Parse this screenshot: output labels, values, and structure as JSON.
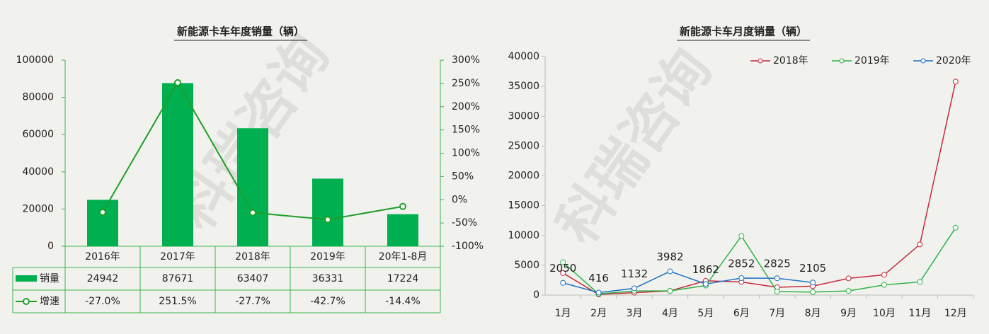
{
  "watermark": "科瑞咨询",
  "chart_data": [
    {
      "type": "bar",
      "title": "新能源卡车年度销量（辆）",
      "categories": [
        "2016年",
        "2017年",
        "2018年",
        "2019年",
        "20年1-8月"
      ],
      "series": [
        {
          "name": "销量",
          "color": "#00b050",
          "values": [
            24942,
            87671,
            63407,
            36331,
            17224
          ]
        },
        {
          "name": "增速",
          "color": "#1e9e28",
          "axis": "y2",
          "values": [
            -27.0,
            251.5,
            -27.7,
            -42.7,
            -14.4
          ],
          "value_labels": [
            "-27.0%",
            "251.5%",
            "-27.7%",
            "-42.7%",
            "-14.4%"
          ]
        }
      ],
      "ylim": [
        0,
        100000
      ],
      "yticks": [
        0,
        20000,
        40000,
        60000,
        80000,
        100000
      ],
      "y2lim": [
        -100,
        300
      ],
      "y2ticks": [
        {
          "value": -100,
          "label": "-100%"
        },
        {
          "value": -50,
          "label": "-50%"
        },
        {
          "value": 0,
          "label": "0%"
        },
        {
          "value": 50,
          "label": "50%"
        },
        {
          "value": 100,
          "label": "100%"
        },
        {
          "value": 150,
          "label": "150%"
        },
        {
          "value": 200,
          "label": "200%"
        },
        {
          "value": 250,
          "label": "250%"
        },
        {
          "value": 300,
          "label": "300%"
        }
      ],
      "data_table": true
    },
    {
      "type": "line",
      "title": "新能源卡车月度销量（辆）",
      "categories": [
        "1月",
        "2月",
        "3月",
        "4月",
        "5月",
        "6月",
        "7月",
        "8月",
        "9月",
        "10月",
        "11月",
        "12月"
      ],
      "series": [
        {
          "name": "2018年",
          "color": "#c8283c",
          "values": [
            3700,
            100,
            400,
            700,
            2400,
            2200,
            1300,
            1500,
            2800,
            3400,
            8500,
            35800
          ]
        },
        {
          "name": "2019年",
          "color": "#2cb34a",
          "values": [
            5500,
            200,
            700,
            700,
            1600,
            9900,
            600,
            500,
            700,
            1700,
            2200,
            11300
          ]
        },
        {
          "name": "2020年",
          "color": "#1f72c4",
          "values": [
            2050,
            416,
            1132,
            3982,
            1862,
            2852,
            2825,
            2105,
            null,
            null,
            null,
            null
          ],
          "data_labels": true
        }
      ],
      "ylim": [
        0,
        40000
      ],
      "yticks": [
        0,
        5000,
        10000,
        15000,
        20000,
        25000,
        30000,
        35000,
        40000
      ],
      "legend": "top-right"
    }
  ]
}
